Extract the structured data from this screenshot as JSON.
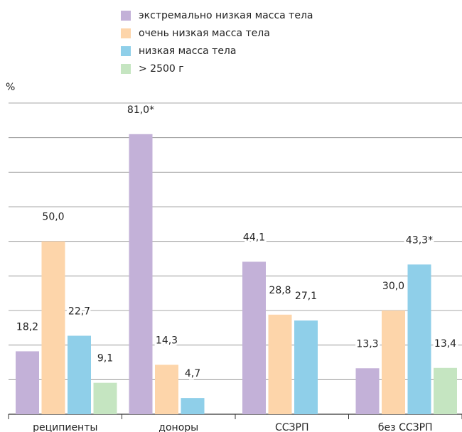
{
  "chart_data": {
    "type": "bar",
    "y_label": "%",
    "categories": [
      "реципиенты",
      "доноры",
      "ССЗРП",
      "без ССЗРП"
    ],
    "series": [
      {
        "name": "экстремально низкая масса тела",
        "color": "#c3b1d8",
        "values": [
          18.2,
          81.0,
          44.1,
          13.3
        ],
        "value_labels": [
          "18,2",
          "81,0*",
          "44,1",
          "13,3"
        ]
      },
      {
        "name": "очень низкая масса тела",
        "color": "#fdd5aa",
        "values": [
          50.0,
          14.3,
          28.8,
          30.0
        ],
        "value_labels": [
          "50,0",
          "14,3",
          "28,8",
          "30,0"
        ]
      },
      {
        "name": "низкая масса тела",
        "color": "#8fcfe9",
        "values": [
          22.7,
          4.7,
          27.1,
          43.3
        ],
        "value_labels": [
          "22,7",
          "4,7",
          "27,1",
          "43,3*"
        ]
      },
      {
        "name": "> 2500 г",
        "color": "#c5e5c1",
        "values": [
          9.1,
          null,
          null,
          13.4
        ],
        "value_labels": [
          "9,1",
          null,
          null,
          "13,4"
        ]
      }
    ],
    "ylim": [
      0,
      90
    ],
    "yticks": [
      0,
      10,
      20,
      30,
      40,
      50,
      60,
      70,
      80,
      90
    ],
    "grid": true
  }
}
